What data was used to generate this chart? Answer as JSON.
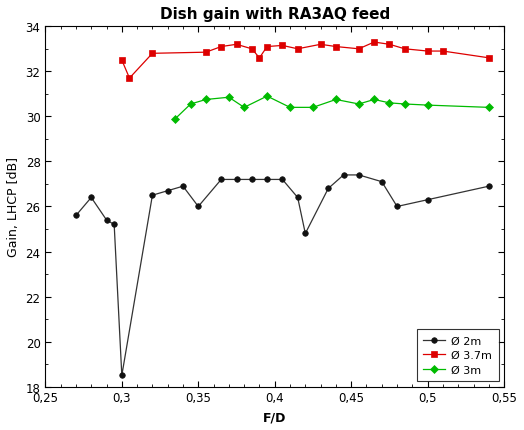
{
  "title": "Dish gain with RA3AQ feed",
  "xlabel": "F/D",
  "ylabel": "Gain, LHCP [dB]",
  "xlim": [
    0.25,
    0.55
  ],
  "ylim": [
    18,
    34
  ],
  "xticks": [
    0.25,
    0.3,
    0.35,
    0.4,
    0.45,
    0.5,
    0.55
  ],
  "yticks": [
    18,
    20,
    22,
    24,
    26,
    28,
    30,
    32,
    34
  ],
  "xtick_labels": [
    "0,25",
    "0,3",
    "0,35",
    "0,4",
    "0,45",
    "0,5",
    "0,55"
  ],
  "ytick_labels": [
    "18",
    "20",
    "22",
    "24",
    "26",
    "28",
    "30",
    "32",
    "34"
  ],
  "series": [
    {
      "label": "Ø 2m",
      "color": "#333333",
      "marker": "o",
      "markersize": 4,
      "markerface": "#111111",
      "linewidth": 0.9,
      "x": [
        0.27,
        0.28,
        0.29,
        0.295,
        0.3,
        0.32,
        0.33,
        0.34,
        0.35,
        0.365,
        0.375,
        0.385,
        0.395,
        0.405,
        0.415,
        0.42,
        0.435,
        0.445,
        0.455,
        0.47,
        0.48,
        0.5,
        0.54
      ],
      "y": [
        25.6,
        26.4,
        25.4,
        25.2,
        18.5,
        26.5,
        26.7,
        26.9,
        26.0,
        27.2,
        27.2,
        27.2,
        27.2,
        27.2,
        26.4,
        24.8,
        26.8,
        27.4,
        27.4,
        27.1,
        26.0,
        26.3,
        26.9
      ]
    },
    {
      "label": "Ø 3.7m",
      "color": "#dd0000",
      "marker": "s",
      "markersize": 4,
      "markerface": "#dd0000",
      "linewidth": 0.9,
      "x": [
        0.3,
        0.305,
        0.32,
        0.355,
        0.365,
        0.375,
        0.385,
        0.39,
        0.395,
        0.405,
        0.415,
        0.43,
        0.44,
        0.455,
        0.465,
        0.475,
        0.485,
        0.5,
        0.51,
        0.54
      ],
      "y": [
        32.5,
        31.7,
        32.8,
        32.85,
        33.1,
        33.2,
        33.0,
        32.6,
        33.1,
        33.15,
        33.0,
        33.2,
        33.1,
        33.0,
        33.3,
        33.2,
        33.0,
        32.9,
        32.9,
        32.6
      ]
    },
    {
      "label": "Ø 3m",
      "color": "#00bb00",
      "marker": "D",
      "markersize": 4,
      "markerface": "#00bb00",
      "linewidth": 0.9,
      "x": [
        0.335,
        0.345,
        0.355,
        0.37,
        0.38,
        0.395,
        0.41,
        0.425,
        0.44,
        0.455,
        0.465,
        0.475,
        0.485,
        0.5,
        0.54
      ],
      "y": [
        29.9,
        30.55,
        30.75,
        30.85,
        30.4,
        30.9,
        30.4,
        30.4,
        30.75,
        30.55,
        30.75,
        30.6,
        30.55,
        30.5,
        30.4
      ]
    }
  ],
  "background_color": "#ffffff",
  "title_fontsize": 11,
  "label_fontsize": 9,
  "tick_fontsize": 8.5
}
